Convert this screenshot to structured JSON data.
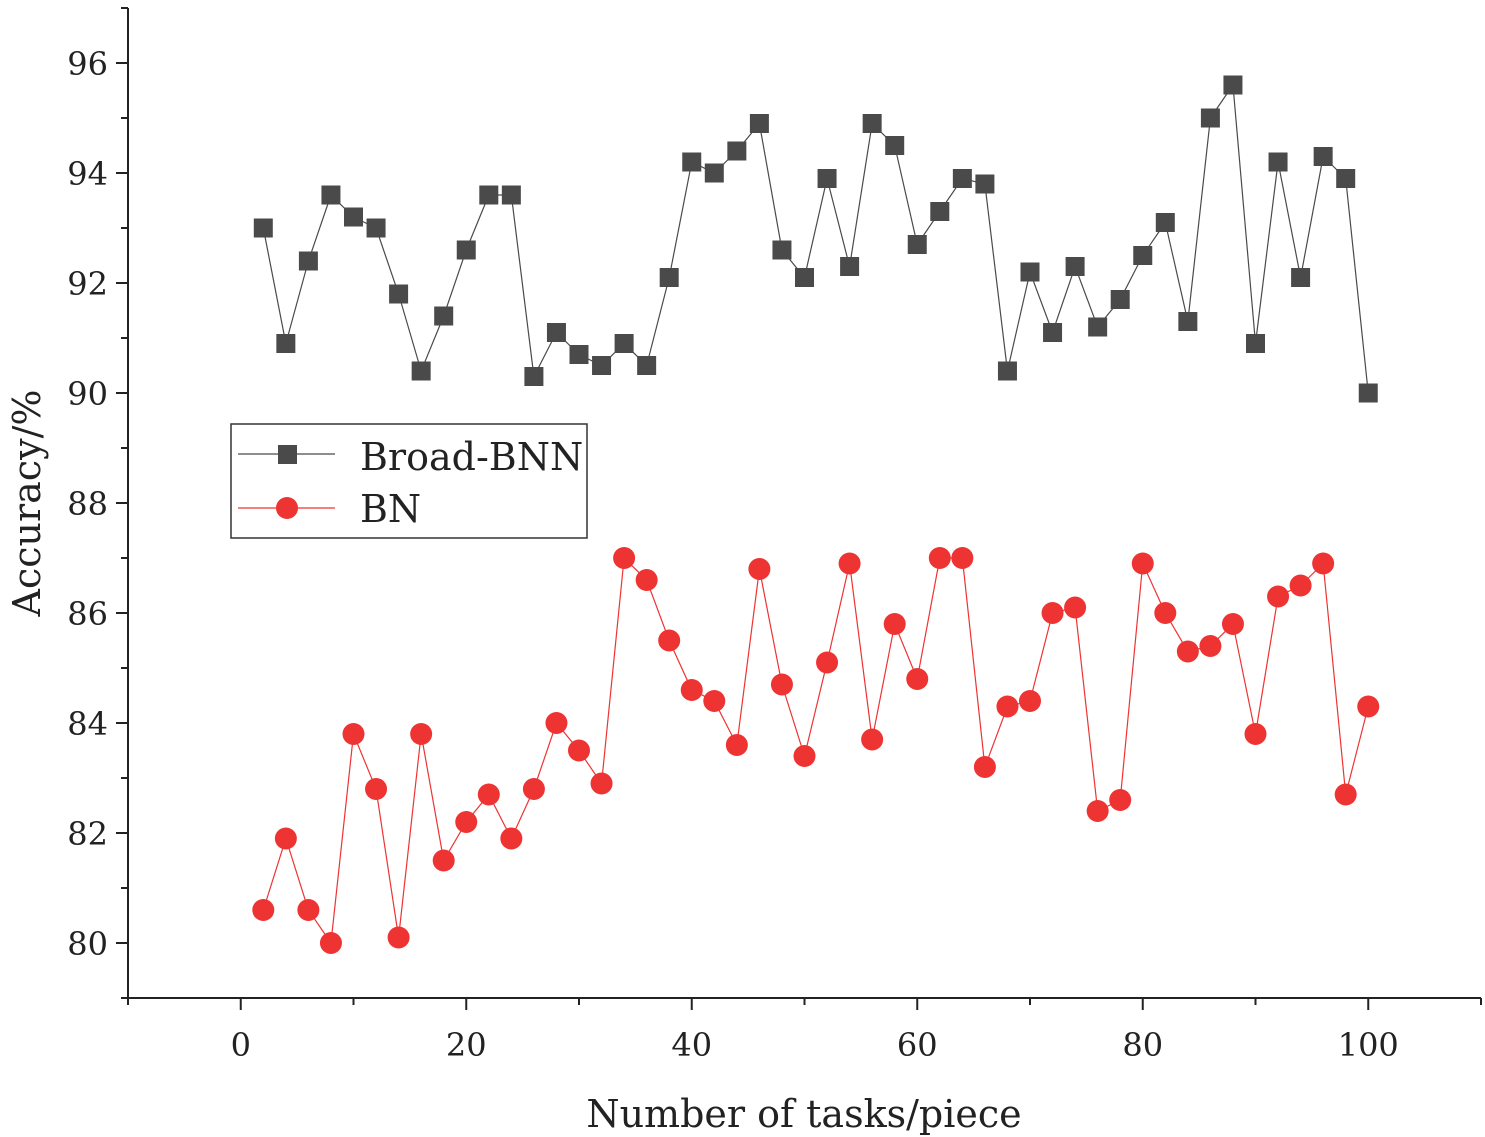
{
  "chart_data": {
    "type": "line",
    "xlabel": "Number of tasks/piece",
    "ylabel": "Accuracy/%",
    "xlim": [
      -10,
      110
    ],
    "ylim": [
      79,
      97
    ],
    "xticks": [
      0,
      20,
      40,
      60,
      80,
      100
    ],
    "yticks": [
      80,
      82,
      84,
      86,
      88,
      90,
      92,
      94,
      96
    ],
    "grid": false,
    "legend_position": "left-middle",
    "x": [
      2,
      4,
      6,
      8,
      10,
      12,
      14,
      16,
      18,
      20,
      22,
      24,
      26,
      28,
      30,
      32,
      34,
      36,
      38,
      40,
      42,
      44,
      46,
      48,
      50,
      52,
      54,
      56,
      58,
      60,
      62,
      64,
      66,
      68,
      70,
      72,
      74,
      76,
      78,
      80,
      82,
      84,
      86,
      88,
      90,
      92,
      94,
      96,
      98,
      100
    ],
    "series": [
      {
        "name": "Broad-BNN",
        "color": "#4a4a4a",
        "marker": "square",
        "values": [
          93.0,
          90.9,
          92.4,
          93.6,
          93.2,
          93.0,
          91.8,
          90.4,
          91.4,
          92.6,
          93.6,
          93.6,
          90.3,
          91.1,
          90.7,
          90.5,
          90.9,
          90.5,
          92.1,
          94.2,
          94.0,
          94.4,
          94.9,
          92.6,
          92.1,
          93.9,
          92.3,
          94.9,
          94.5,
          92.7,
          93.3,
          93.9,
          93.8,
          90.4,
          92.2,
          91.1,
          92.3,
          91.2,
          91.7,
          92.5,
          93.1,
          91.3,
          95.0,
          95.6,
          90.9,
          94.2,
          92.1,
          94.3,
          93.9,
          90.0
        ]
      },
      {
        "name": "BN",
        "color": "#ee3333",
        "marker": "circle",
        "values": [
          80.6,
          81.9,
          80.6,
          80.0,
          83.8,
          82.8,
          80.1,
          83.8,
          81.5,
          82.2,
          82.7,
          81.9,
          82.8,
          84.0,
          83.5,
          82.9,
          87.0,
          86.6,
          85.5,
          84.6,
          84.4,
          83.6,
          86.8,
          84.7,
          83.4,
          85.1,
          86.9,
          83.7,
          85.8,
          84.8,
          87.0,
          87.0,
          83.2,
          84.3,
          84.4,
          86.0,
          86.1,
          82.4,
          82.6,
          86.9,
          86.0,
          85.3,
          85.4,
          85.8,
          83.8,
          86.3,
          86.5,
          86.9,
          82.7,
          84.3
        ]
      }
    ]
  }
}
